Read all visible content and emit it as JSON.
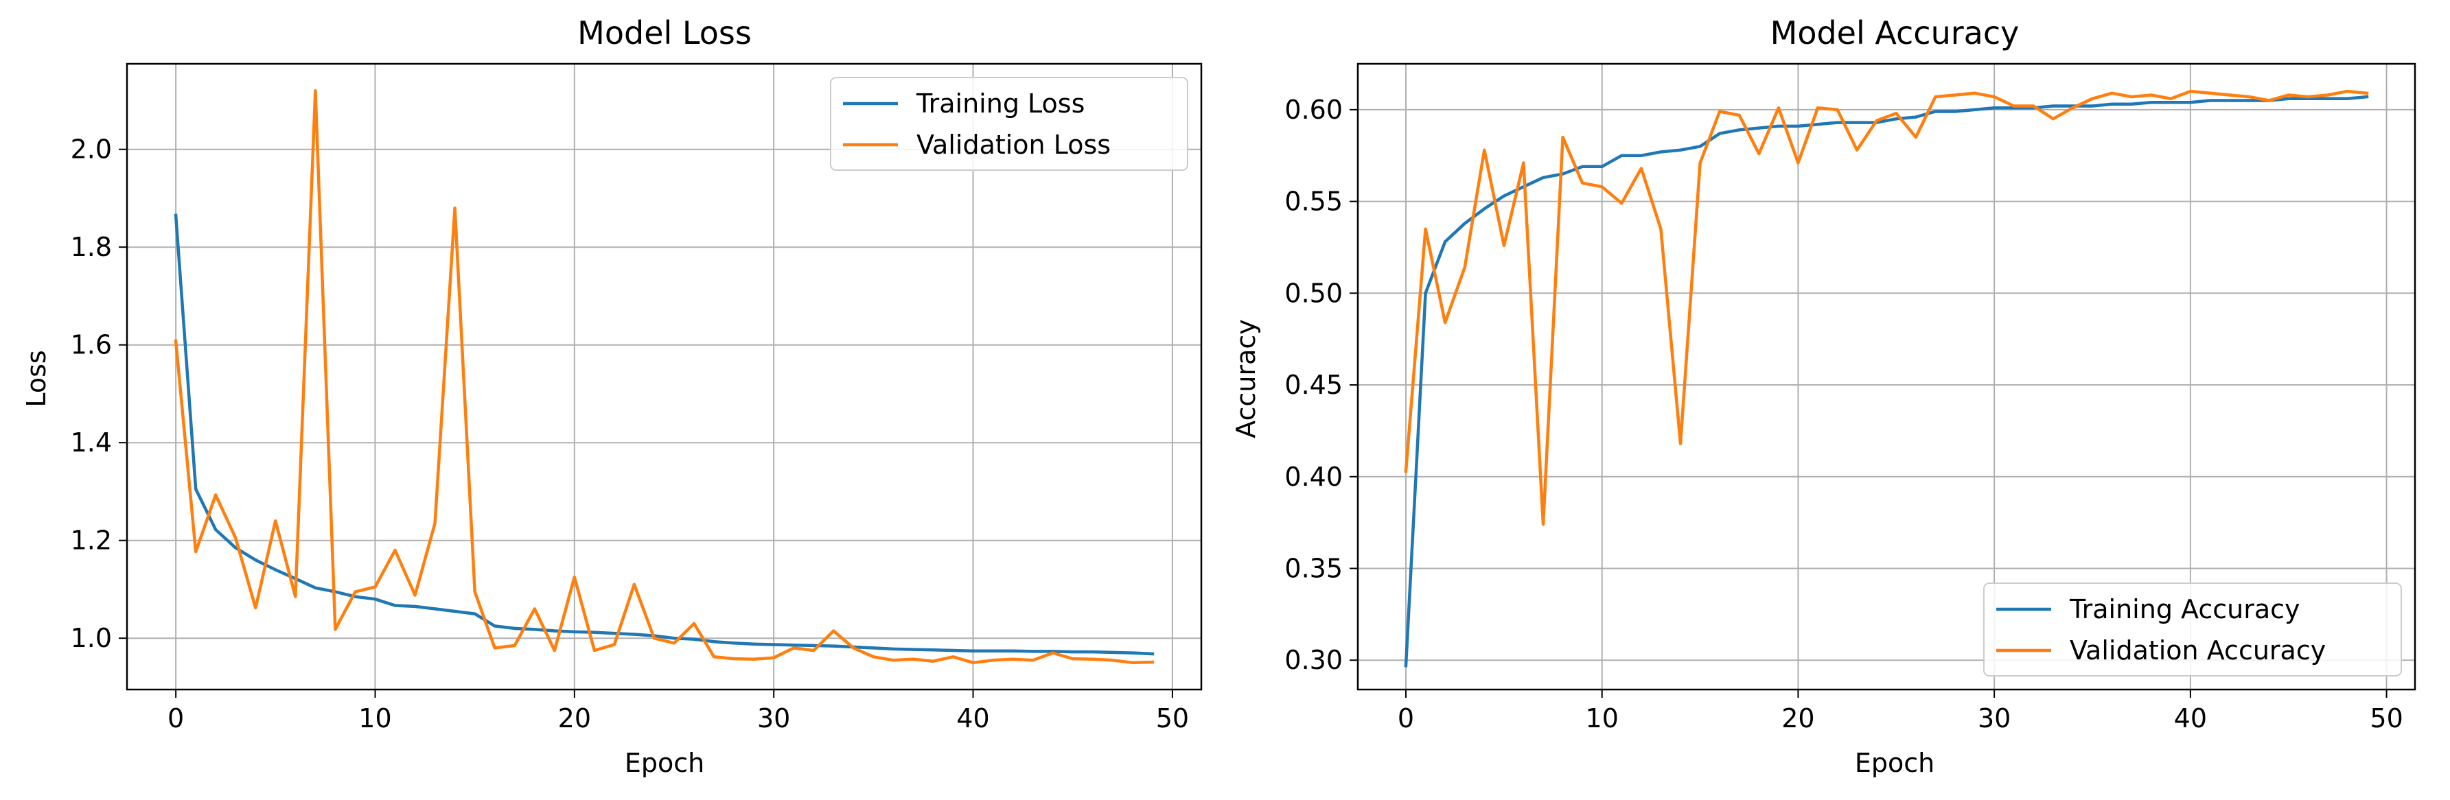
{
  "colors": {
    "training": "#1f77b4",
    "validation": "#ff7f0e",
    "grid": "#b0b0b0"
  },
  "chart_data": [
    {
      "type": "line",
      "title": "Model Loss",
      "xlabel": "Epoch",
      "ylabel": "Loss",
      "xlim": [
        -2.45,
        51.45
      ],
      "ylim": [
        0.895,
        2.175
      ],
      "xticks": [
        0,
        10,
        20,
        30,
        40,
        50
      ],
      "yticks": [
        1.0,
        1.2,
        1.4,
        1.6,
        1.8,
        2.0
      ],
      "ytick_labels": [
        "1.0",
        "1.2",
        "1.4",
        "1.6",
        "1.8",
        "2.0"
      ],
      "grid": true,
      "legend": "upper right",
      "x": [
        0,
        1,
        2,
        3,
        4,
        5,
        6,
        7,
        8,
        9,
        10,
        11,
        12,
        13,
        14,
        15,
        16,
        17,
        18,
        19,
        20,
        21,
        22,
        23,
        24,
        25,
        26,
        27,
        28,
        29,
        30,
        31,
        32,
        33,
        34,
        35,
        36,
        37,
        38,
        39,
        40,
        41,
        42,
        43,
        44,
        45,
        46,
        47,
        48,
        49
      ],
      "series": [
        {
          "name": "Training Loss",
          "values": [
            1.865,
            1.305,
            1.222,
            1.185,
            1.16,
            1.14,
            1.122,
            1.103,
            1.095,
            1.085,
            1.08,
            1.067,
            1.065,
            1.06,
            1.055,
            1.05,
            1.025,
            1.02,
            1.018,
            1.015,
            1.013,
            1.012,
            1.01,
            1.008,
            1.005,
            1.0,
            0.998,
            0.993,
            0.99,
            0.988,
            0.987,
            0.986,
            0.985,
            0.984,
            0.982,
            0.98,
            0.978,
            0.977,
            0.976,
            0.975,
            0.974,
            0.974,
            0.974,
            0.973,
            0.973,
            0.972,
            0.972,
            0.971,
            0.97,
            0.968
          ]
        },
        {
          "name": "Validation Loss",
          "values": [
            1.608,
            1.177,
            1.293,
            1.205,
            1.062,
            1.24,
            1.085,
            2.12,
            1.018,
            1.095,
            1.105,
            1.18,
            1.088,
            1.235,
            1.88,
            1.095,
            0.98,
            0.985,
            1.06,
            0.975,
            1.125,
            0.975,
            0.987,
            1.11,
            1.0,
            0.99,
            1.03,
            0.962,
            0.958,
            0.957,
            0.96,
            0.98,
            0.975,
            1.015,
            0.98,
            0.962,
            0.955,
            0.957,
            0.953,
            0.962,
            0.95,
            0.955,
            0.957,
            0.955,
            0.97,
            0.958,
            0.957,
            0.955,
            0.95,
            0.951
          ]
        }
      ]
    },
    {
      "type": "line",
      "title": "Model Accuracy",
      "xlabel": "Epoch",
      "ylabel": "Accuracy",
      "xlim": [
        -2.45,
        51.45
      ],
      "ylim": [
        0.284,
        0.625
      ],
      "xticks": [
        0,
        10,
        20,
        30,
        40,
        50
      ],
      "yticks": [
        0.3,
        0.35,
        0.4,
        0.45,
        0.5,
        0.55,
        0.6
      ],
      "ytick_labels": [
        "0.30",
        "0.35",
        "0.40",
        "0.45",
        "0.50",
        "0.55",
        "0.60"
      ],
      "grid": true,
      "legend": "lower right",
      "x": [
        0,
        1,
        2,
        3,
        4,
        5,
        6,
        7,
        8,
        9,
        10,
        11,
        12,
        13,
        14,
        15,
        16,
        17,
        18,
        19,
        20,
        21,
        22,
        23,
        24,
        25,
        26,
        27,
        28,
        29,
        30,
        31,
        32,
        33,
        34,
        35,
        36,
        37,
        38,
        39,
        40,
        41,
        42,
        43,
        44,
        45,
        46,
        47,
        48,
        49
      ],
      "series": [
        {
          "name": "Training Accuracy",
          "values": [
            0.297,
            0.5,
            0.528,
            0.538,
            0.546,
            0.553,
            0.558,
            0.563,
            0.565,
            0.569,
            0.569,
            0.575,
            0.575,
            0.577,
            0.578,
            0.58,
            0.587,
            0.589,
            0.59,
            0.591,
            0.591,
            0.592,
            0.593,
            0.593,
            0.593,
            0.595,
            0.596,
            0.599,
            0.599,
            0.6,
            0.601,
            0.601,
            0.601,
            0.602,
            0.602,
            0.602,
            0.603,
            0.603,
            0.604,
            0.604,
            0.604,
            0.605,
            0.605,
            0.605,
            0.605,
            0.606,
            0.606,
            0.606,
            0.606,
            0.607
          ]
        },
        {
          "name": "Validation Accuracy",
          "values": [
            0.403,
            0.535,
            0.484,
            0.514,
            0.578,
            0.526,
            0.571,
            0.374,
            0.585,
            0.56,
            0.558,
            0.549,
            0.568,
            0.535,
            0.418,
            0.571,
            0.599,
            0.597,
            0.576,
            0.601,
            0.571,
            0.601,
            0.6,
            0.578,
            0.594,
            0.598,
            0.585,
            0.607,
            0.608,
            0.609,
            0.607,
            0.602,
            0.602,
            0.595,
            0.601,
            0.606,
            0.609,
            0.607,
            0.608,
            0.606,
            0.61,
            0.609,
            0.608,
            0.607,
            0.605,
            0.608,
            0.607,
            0.608,
            0.61,
            0.609
          ]
        }
      ]
    }
  ]
}
